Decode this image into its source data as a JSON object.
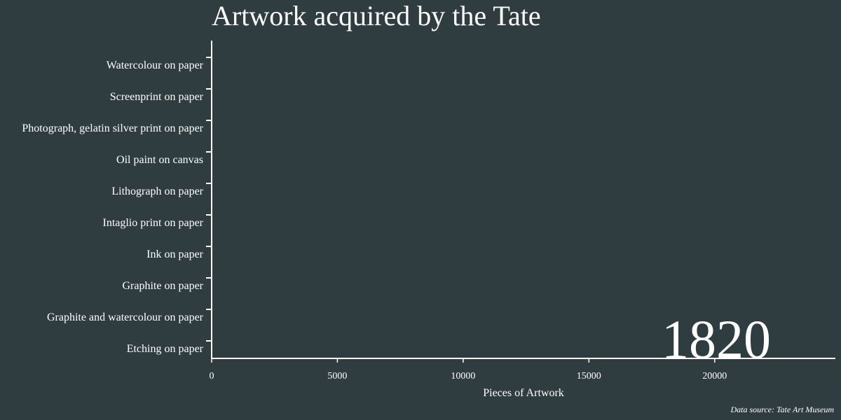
{
  "colors": {
    "background": "#2f3d40",
    "foreground": "#ffffff"
  },
  "chart_data": {
    "type": "bar",
    "orientation": "horizontal",
    "title": "Artwork acquired by the Tate",
    "xlabel": "Pieces of Artwork",
    "ylabel": "",
    "categories": [
      "Watercolour on paper",
      "Screenprint on paper",
      "Photograph, gelatin silver print on paper",
      "Oil paint on canvas",
      "Lithograph on paper",
      "Intaglio print on paper",
      "Ink on paper",
      "Graphite on paper",
      "Graphite and watercolour on paper",
      "Etching on paper"
    ],
    "values": [
      0,
      0,
      0,
      0,
      0,
      0,
      0,
      0,
      0,
      0
    ],
    "xlim": [
      0,
      24800
    ],
    "xticks": [
      "0",
      "5000",
      "10000",
      "15000",
      "20000"
    ],
    "year": "1820",
    "source": "Data source: Tate Art Museum",
    "grid": false,
    "legend": "none"
  }
}
